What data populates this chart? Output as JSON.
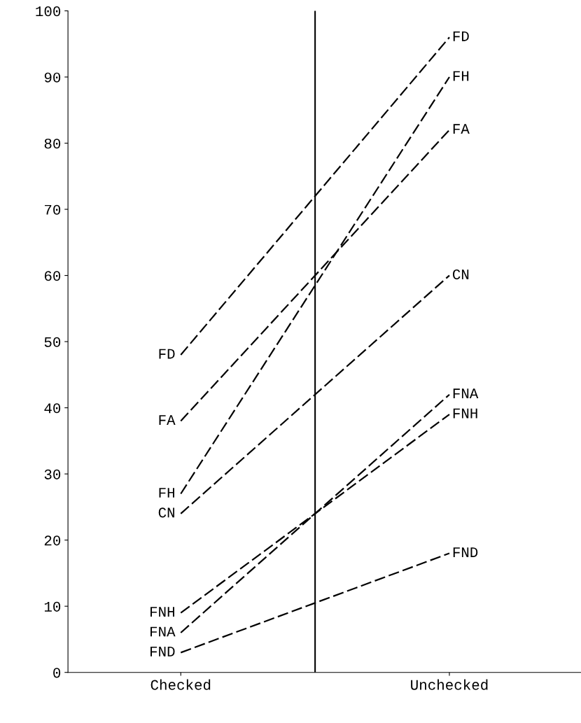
{
  "chart_data": {
    "type": "line",
    "categories": [
      "Checked",
      "Unchecked"
    ],
    "ylim": [
      0,
      100
    ],
    "yticks": [
      0,
      10,
      20,
      30,
      40,
      50,
      60,
      70,
      80,
      90,
      100
    ],
    "series": [
      {
        "name": "FD",
        "color": "#000000",
        "values": [
          48,
          96
        ]
      },
      {
        "name": "FA",
        "color": "#000000",
        "values": [
          38,
          82
        ]
      },
      {
        "name": "FH",
        "color": "#000000",
        "values": [
          27,
          90
        ]
      },
      {
        "name": "CN",
        "color": "#000000",
        "values": [
          24,
          60
        ]
      },
      {
        "name": "FNH",
        "color": "#000000",
        "values": [
          9,
          39
        ]
      },
      {
        "name": "FNA",
        "color": "#000000",
        "values": [
          6,
          42
        ]
      },
      {
        "name": "FND",
        "color": "#000000",
        "values": [
          3,
          18
        ]
      }
    ],
    "line_style": "dashed",
    "marker": "none",
    "grid": false,
    "legend": false
  }
}
